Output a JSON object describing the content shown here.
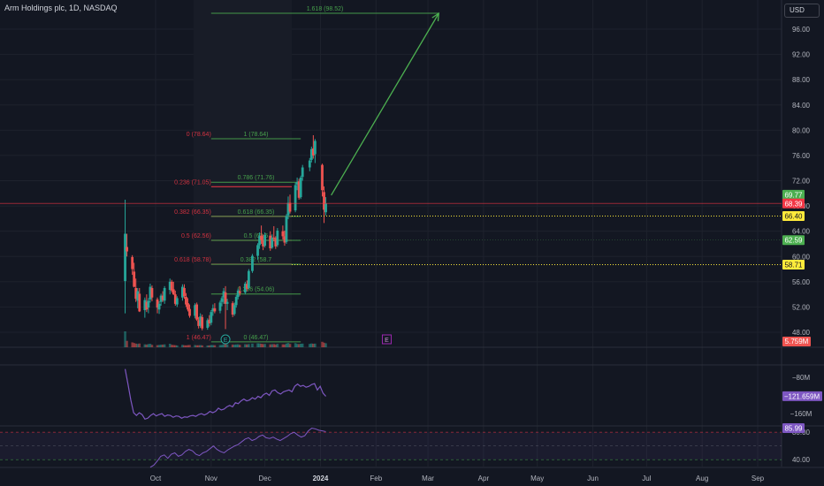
{
  "header": {
    "title": "Arm Holdings plc, 1D, NASDAQ",
    "currency": "USD"
  },
  "colors": {
    "background": "#131722",
    "up": "#26a69a",
    "down": "#ef5350",
    "fib_green": "#4caf50",
    "fib_red": "#f23645",
    "highlight": "#ffeb3b",
    "indicator": "#7e57c2",
    "arrow": "#4caf50"
  },
  "chart_data": [
    {
      "type": "candlestick",
      "title": "Arm Holdings plc, 1D, NASDAQ",
      "ylim": [
        46,
        100
      ],
      "y_ticks": [
        48,
        52,
        56,
        60,
        64,
        68,
        72,
        76,
        80,
        84,
        88,
        92,
        96
      ],
      "y_tick_labels": [
        "48.00",
        "52.00",
        "56.00",
        "60.00",
        "64.00",
        "68.00",
        "72.00",
        "76.00",
        "80.00",
        "84.00",
        "88.00",
        "92.00",
        "96.00"
      ],
      "x_labels": [
        "Oct",
        "Nov",
        "Dec",
        "2024",
        "Feb",
        "Mar",
        "Apr",
        "May",
        "Jun",
        "Jul",
        "Aug",
        "Sep"
      ],
      "x_label_dates": [
        "2023-10-01",
        "2023-11-01",
        "2023-12-01",
        "2024-01-01",
        "2024-02-01",
        "2024-03-01",
        "2024-04-01",
        "2024-05-01",
        "2024-06-01",
        "2024-07-01",
        "2024-08-01",
        "2024-09-01"
      ],
      "x_range": [
        "2023-09-11",
        "2024-09-25"
      ],
      "candles": [
        {
          "d": "2023-09-14",
          "o": 56.1,
          "h": 69.0,
          "l": 51.0,
          "c": 63.6
        },
        {
          "d": "2023-09-15",
          "o": 61.5,
          "h": 63.6,
          "l": 60.0,
          "c": 60.8
        },
        {
          "d": "2023-09-18",
          "o": 59.9,
          "h": 60.2,
          "l": 57.1,
          "c": 58.0
        },
        {
          "d": "2023-09-19",
          "o": 57.6,
          "h": 59.0,
          "l": 55.1,
          "c": 55.2
        },
        {
          "d": "2023-09-20",
          "o": 55.0,
          "h": 56.5,
          "l": 52.8,
          "c": 53.3
        },
        {
          "d": "2023-09-21",
          "o": 53.0,
          "h": 55.0,
          "l": 51.8,
          "c": 54.5
        },
        {
          "d": "2023-09-22",
          "o": 54.1,
          "h": 55.0,
          "l": 51.2,
          "c": 51.3
        },
        {
          "d": "2023-09-25",
          "o": 51.5,
          "h": 53.5,
          "l": 50.3,
          "c": 53.1
        },
        {
          "d": "2023-09-26",
          "o": 52.8,
          "h": 54.0,
          "l": 51.2,
          "c": 51.6
        },
        {
          "d": "2023-09-27",
          "o": 51.9,
          "h": 53.4,
          "l": 51.0,
          "c": 53.0
        },
        {
          "d": "2023-09-28",
          "o": 53.2,
          "h": 55.7,
          "l": 52.7,
          "c": 55.2
        },
        {
          "d": "2023-09-29",
          "o": 55.0,
          "h": 55.4,
          "l": 52.9,
          "c": 53.5
        },
        {
          "d": "2023-10-02",
          "o": 53.2,
          "h": 53.5,
          "l": 51.0,
          "c": 51.9
        },
        {
          "d": "2023-10-03",
          "o": 51.6,
          "h": 52.9,
          "l": 50.9,
          "c": 52.5
        },
        {
          "d": "2023-10-04",
          "o": 52.8,
          "h": 54.1,
          "l": 52.2,
          "c": 53.8
        },
        {
          "d": "2023-10-05",
          "o": 53.8,
          "h": 54.5,
          "l": 52.8,
          "c": 53.1
        },
        {
          "d": "2023-10-06",
          "o": 53.0,
          "h": 55.3,
          "l": 52.5,
          "c": 55.0
        },
        {
          "d": "2023-10-09",
          "o": 54.7,
          "h": 56.5,
          "l": 54.0,
          "c": 56.0
        },
        {
          "d": "2023-10-10",
          "o": 56.0,
          "h": 56.3,
          "l": 54.3,
          "c": 54.6
        },
        {
          "d": "2023-10-11",
          "o": 54.8,
          "h": 56.0,
          "l": 53.9,
          "c": 54.0
        },
        {
          "d": "2023-10-12",
          "o": 54.0,
          "h": 54.6,
          "l": 52.2,
          "c": 52.5
        },
        {
          "d": "2023-10-13",
          "o": 52.4,
          "h": 53.7,
          "l": 52.0,
          "c": 53.4
        },
        {
          "d": "2023-10-16",
          "o": 53.5,
          "h": 55.6,
          "l": 53.0,
          "c": 55.2
        },
        {
          "d": "2023-10-17",
          "o": 55.0,
          "h": 55.6,
          "l": 53.3,
          "c": 53.7
        },
        {
          "d": "2023-10-18",
          "o": 53.6,
          "h": 54.2,
          "l": 52.0,
          "c": 52.4
        },
        {
          "d": "2023-10-19",
          "o": 52.6,
          "h": 53.4,
          "l": 51.3,
          "c": 51.6
        },
        {
          "d": "2023-10-20",
          "o": 51.7,
          "h": 52.4,
          "l": 50.3,
          "c": 50.6
        },
        {
          "d": "2023-10-23",
          "o": 50.6,
          "h": 52.6,
          "l": 50.2,
          "c": 52.3
        },
        {
          "d": "2023-10-24",
          "o": 52.4,
          "h": 52.7,
          "l": 49.8,
          "c": 50.0
        },
        {
          "d": "2023-10-25",
          "o": 49.9,
          "h": 50.4,
          "l": 48.6,
          "c": 49.0
        },
        {
          "d": "2023-10-26",
          "o": 49.0,
          "h": 51.0,
          "l": 48.7,
          "c": 50.5
        },
        {
          "d": "2023-10-27",
          "o": 50.4,
          "h": 50.8,
          "l": 48.3,
          "c": 48.6
        },
        {
          "d": "2023-10-30",
          "o": 48.7,
          "h": 50.2,
          "l": 48.4,
          "c": 49.9
        },
        {
          "d": "2023-10-31",
          "o": 50.0,
          "h": 50.7,
          "l": 48.9,
          "c": 49.4
        },
        {
          "d": "2023-11-01",
          "o": 49.5,
          "h": 51.5,
          "l": 49.1,
          "c": 51.2
        },
        {
          "d": "2023-11-02",
          "o": 51.3,
          "h": 52.4,
          "l": 50.6,
          "c": 51.8
        },
        {
          "d": "2023-11-03",
          "o": 51.8,
          "h": 52.6,
          "l": 51.0,
          "c": 51.3
        },
        {
          "d": "2023-11-06",
          "o": 51.4,
          "h": 53.0,
          "l": 51.0,
          "c": 52.7
        },
        {
          "d": "2023-11-07",
          "o": 52.8,
          "h": 53.7,
          "l": 52.1,
          "c": 53.4
        },
        {
          "d": "2023-11-08",
          "o": 53.5,
          "h": 55.0,
          "l": 52.5,
          "c": 54.5
        },
        {
          "d": "2023-11-09",
          "o": 54.3,
          "h": 55.3,
          "l": 48.5,
          "c": 52.5
        },
        {
          "d": "2023-11-10",
          "o": 52.5,
          "h": 53.3,
          "l": 51.5,
          "c": 52.8
        },
        {
          "d": "2023-11-13",
          "o": 52.6,
          "h": 52.9,
          "l": 50.4,
          "c": 50.8
        },
        {
          "d": "2023-11-14",
          "o": 50.9,
          "h": 52.7,
          "l": 50.6,
          "c": 52.3
        },
        {
          "d": "2023-11-15",
          "o": 52.3,
          "h": 53.9,
          "l": 51.9,
          "c": 53.6
        },
        {
          "d": "2023-11-16",
          "o": 53.6,
          "h": 54.9,
          "l": 53.2,
          "c": 54.6
        },
        {
          "d": "2023-11-17",
          "o": 54.5,
          "h": 55.3,
          "l": 53.8,
          "c": 54.2
        },
        {
          "d": "2023-11-20",
          "o": 54.3,
          "h": 56.0,
          "l": 54.0,
          "c": 55.7
        },
        {
          "d": "2023-11-21",
          "o": 55.6,
          "h": 56.2,
          "l": 54.5,
          "c": 54.9
        },
        {
          "d": "2023-11-22",
          "o": 55.0,
          "h": 58.0,
          "l": 54.8,
          "c": 57.7
        },
        {
          "d": "2023-11-24",
          "o": 57.7,
          "h": 60.4,
          "l": 57.4,
          "c": 60.1
        },
        {
          "d": "2023-11-27",
          "o": 60.1,
          "h": 62.1,
          "l": 59.5,
          "c": 61.8
        },
        {
          "d": "2023-11-28",
          "o": 61.8,
          "h": 63.8,
          "l": 61.2,
          "c": 63.3
        },
        {
          "d": "2023-11-29",
          "o": 63.3,
          "h": 64.9,
          "l": 62.0,
          "c": 62.6
        },
        {
          "d": "2023-11-30",
          "o": 62.6,
          "h": 63.5,
          "l": 61.0,
          "c": 61.6
        },
        {
          "d": "2023-12-01",
          "o": 61.7,
          "h": 63.8,
          "l": 61.4,
          "c": 63.4
        },
        {
          "d": "2023-12-04",
          "o": 63.3,
          "h": 64.0,
          "l": 60.9,
          "c": 61.3
        },
        {
          "d": "2023-12-05",
          "o": 61.4,
          "h": 63.5,
          "l": 61.2,
          "c": 63.0
        },
        {
          "d": "2023-12-06",
          "o": 63.0,
          "h": 64.8,
          "l": 62.4,
          "c": 62.9
        },
        {
          "d": "2023-12-07",
          "o": 62.9,
          "h": 63.2,
          "l": 61.2,
          "c": 61.6
        },
        {
          "d": "2023-12-08",
          "o": 61.8,
          "h": 64.5,
          "l": 61.5,
          "c": 64.1
        },
        {
          "d": "2023-12-11",
          "o": 64.0,
          "h": 64.9,
          "l": 62.7,
          "c": 63.2
        },
        {
          "d": "2023-12-12",
          "o": 63.2,
          "h": 64.1,
          "l": 61.7,
          "c": 62.2
        },
        {
          "d": "2023-12-13",
          "o": 62.3,
          "h": 66.7,
          "l": 62.0,
          "c": 66.4
        },
        {
          "d": "2023-12-14",
          "o": 66.5,
          "h": 69.5,
          "l": 65.9,
          "c": 68.5
        },
        {
          "d": "2023-12-15",
          "o": 68.5,
          "h": 69.8,
          "l": 66.8,
          "c": 67.1
        },
        {
          "d": "2023-12-18",
          "o": 67.3,
          "h": 71.7,
          "l": 67.0,
          "c": 71.3
        },
        {
          "d": "2023-12-19",
          "o": 71.4,
          "h": 72.5,
          "l": 70.5,
          "c": 71.8
        },
        {
          "d": "2023-12-20",
          "o": 71.9,
          "h": 72.3,
          "l": 69.0,
          "c": 69.3
        },
        {
          "d": "2023-12-21",
          "o": 69.4,
          "h": 72.8,
          "l": 69.1,
          "c": 72.5
        },
        {
          "d": "2023-12-22",
          "o": 72.6,
          "h": 74.5,
          "l": 72.0,
          "c": 74.1
        },
        {
          "d": "2023-12-26",
          "o": 74.1,
          "h": 75.6,
          "l": 73.5,
          "c": 75.2
        },
        {
          "d": "2023-12-27",
          "o": 75.3,
          "h": 77.4,
          "l": 74.9,
          "c": 77.0
        },
        {
          "d": "2023-12-28",
          "o": 77.1,
          "h": 79.2,
          "l": 75.5,
          "c": 76.0
        },
        {
          "d": "2023-12-29",
          "o": 76.2,
          "h": 78.6,
          "l": 74.8,
          "c": 78.3
        },
        {
          "d": "2024-01-02",
          "o": 74.5,
          "h": 74.7,
          "l": 69.5,
          "c": 70.5
        },
        {
          "d": "2024-01-03",
          "o": 70.2,
          "h": 71.1,
          "l": 65.3,
          "c": 67.4
        },
        {
          "d": "2024-01-04",
          "o": 67.0,
          "h": 69.4,
          "l": 66.5,
          "c": 68.4
        }
      ],
      "last_price_line": 68.39,
      "fib_left": {
        "levels": [
          "0 (78.64)",
          "0.236 (71.05)",
          "0.382 (66.35)",
          "0.5 (62.56)",
          "0.618 (58.78)",
          "1 (46.47)"
        ],
        "values": [
          78.64,
          71.05,
          66.35,
          62.56,
          58.78,
          46.47
        ]
      },
      "fib_right": {
        "levels": [
          "1.618 (98.52)",
          "1 (78.64)",
          "0.786 (71.76)",
          "0.618 (66.35)",
          "0.5 (62.56)",
          "0.382 (58.76)",
          "0.236 (54.06)",
          "0 (46.47)"
        ],
        "values": [
          98.52,
          78.64,
          71.76,
          66.35,
          62.56,
          58.76,
          54.06,
          46.47
        ],
        "shown_labels": [
          "1.618 (98.52)",
          "1 (78.64)",
          "0.786 (71.76)",
          "0.618 (66.35)",
          "0.5 (62.5",
          "0.382 (58.7",
          "0.236 (54.06)",
          "0 (46.47)"
        ]
      },
      "dotted_lines": [
        66.4,
        58.71
      ],
      "price_tags": [
        {
          "label": "69.77",
          "value": 69.77,
          "color": "#4caf50"
        },
        {
          "label": "68.39",
          "value": 68.39,
          "color": "#f23645"
        },
        {
          "label": "66.40",
          "value": 66.4,
          "color": "#ffeb3b"
        },
        {
          "label": "62.59",
          "value": 62.59,
          "color": "#4caf50"
        },
        {
          "label": "58.71",
          "value": 58.71,
          "color": "#ffeb3b"
        }
      ],
      "projection_arrow": {
        "from_date": "2024-01-07",
        "from_value": 69.7,
        "to_date": "2024-03-07",
        "to_value": 98.5
      },
      "events": [
        {
          "label": "E",
          "date": "2023-11-09"
        },
        {
          "label": "E",
          "date": "2024-02-07"
        }
      ],
      "volume_tag": "5.759M",
      "volume_values": [
        260,
        105,
        80,
        70,
        60,
        55,
        62,
        48,
        45,
        52,
        57,
        40,
        35,
        38,
        42,
        44,
        48,
        58,
        40,
        37,
        34,
        30,
        40,
        33,
        31,
        35,
        38,
        36,
        32,
        33,
        35,
        31,
        29,
        30,
        37,
        36,
        34,
        36,
        38,
        50,
        120,
        48,
        45,
        42,
        46,
        48,
        40,
        50,
        47,
        52,
        60,
        65,
        62,
        58,
        52,
        55,
        48,
        50,
        52,
        45,
        55,
        48,
        46,
        60,
        70,
        54,
        68,
        55,
        52,
        58,
        60,
        55,
        62,
        58,
        60,
        90,
        75,
        66
      ]
    },
    {
      "type": "line",
      "series": [
        {
          "values": [
            -62,
            -95,
            -130,
            -158,
            -164,
            -158,
            -162,
            -172,
            -170,
            -164,
            -160,
            -165,
            -162,
            -160,
            -166,
            -163,
            -164,
            -168,
            -165,
            -166,
            -170,
            -167,
            -168,
            -165,
            -164,
            -166,
            -162,
            -160,
            -163,
            -160,
            -155,
            -158,
            -155,
            -148,
            -152,
            -150,
            -145,
            -142,
            -145,
            -136,
            -138,
            -132,
            -128,
            -132,
            -130,
            -125,
            -128,
            -122,
            -125,
            -118,
            -115,
            -120,
            -110,
            -108,
            -114,
            -117,
            -112,
            -110,
            -108,
            -112,
            -100,
            -95,
            -100,
            -98,
            -102,
            -100,
            -96,
            -94,
            -108,
            -100,
            -115,
            -122
          ]
        }
      ],
      "ylim": [
        -185,
        -55
      ],
      "y_ticks": [
        -80,
        -160
      ],
      "y_tick_labels": [
        "−80M",
        "−160M"
      ],
      "value_tag": "−121.659M"
    },
    {
      "type": "line",
      "series": [
        {
          "values": [
            29,
            32,
            38,
            45,
            47,
            42,
            48,
            50,
            45,
            47,
            52,
            55,
            53,
            48,
            46,
            50,
            52,
            56,
            60,
            55,
            52,
            50,
            54,
            57,
            60,
            62,
            66,
            70,
            72,
            68,
            70,
            74,
            76,
            72,
            71,
            73,
            70,
            68,
            71,
            74,
            78,
            80,
            76,
            73,
            75,
            82,
            86,
            85,
            83,
            82,
            81
          ]
        }
      ],
      "ylim": [
        30,
        88
      ],
      "y_ticks": [
        80,
        40
      ],
      "y_tick_labels": [
        "80.00",
        "40.00"
      ],
      "band": [
        40,
        80
      ],
      "value_tag": "85.99"
    }
  ]
}
